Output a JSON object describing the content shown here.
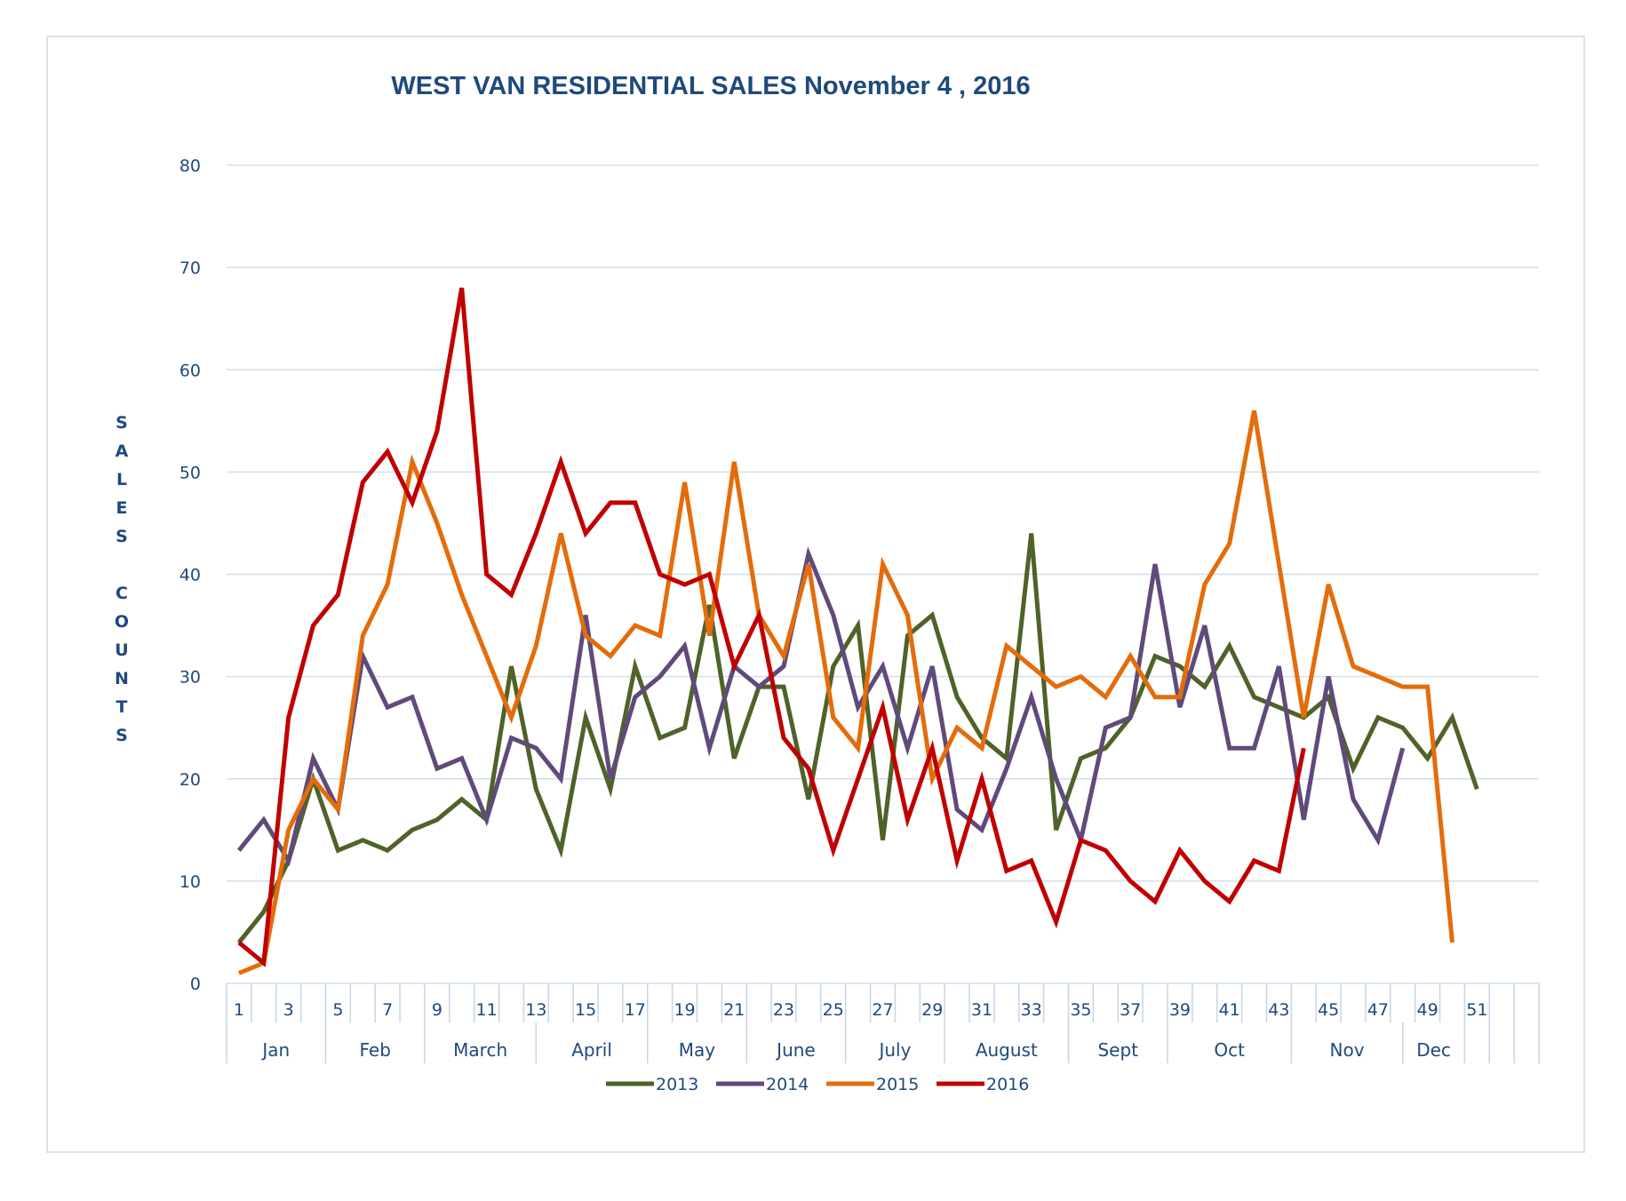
{
  "chart_data": {
    "type": "line",
    "title": "WEST VAN RESIDENTIAL SALES November 4 , 2016",
    "ylabel": "SALES COUNTS",
    "ylim": [
      0,
      80
    ],
    "yticks": [
      "0",
      "10",
      "20",
      "30",
      "40",
      "50",
      "60",
      "70",
      "80"
    ],
    "xlim": [
      1,
      53
    ],
    "xticks": [
      "1",
      "3",
      "5",
      "7",
      "9",
      "11",
      "13",
      "15",
      "17",
      "19",
      "21",
      "23",
      "25",
      "27",
      "29",
      "31",
      "33",
      "35",
      "37",
      "39",
      "41",
      "43",
      "45",
      "47",
      "49",
      "51"
    ],
    "months": [
      {
        "label": "Jan",
        "start": 1,
        "end": 5
      },
      {
        "label": "Feb",
        "start": 5,
        "end": 9
      },
      {
        "label": "March",
        "start": 9,
        "end": 13.5
      },
      {
        "label": "April",
        "start": 13.5,
        "end": 18
      },
      {
        "label": "May",
        "start": 18,
        "end": 22
      },
      {
        "label": "June",
        "start": 22,
        "end": 26
      },
      {
        "label": "July",
        "start": 26,
        "end": 30
      },
      {
        "label": "August",
        "start": 30,
        "end": 35
      },
      {
        "label": "Sept",
        "start": 35,
        "end": 39
      },
      {
        "label": "Oct",
        "start": 39,
        "end": 44
      },
      {
        "label": "Nov",
        "start": 44,
        "end": 48.5
      },
      {
        "label": "Dec",
        "start": 48.5,
        "end": 51
      }
    ],
    "grid": true,
    "legend_position": "bottom",
    "series": [
      {
        "name": "2013",
        "color": "#4f6228",
        "values": [
          4,
          7,
          12,
          20,
          13,
          14,
          13,
          15,
          16,
          18,
          16,
          31,
          19,
          13,
          26,
          19,
          31,
          24,
          25,
          37,
          22,
          29,
          29,
          18,
          31,
          35,
          14,
          34,
          36,
          28,
          24,
          22,
          44,
          15,
          22,
          23,
          26,
          32,
          31,
          29,
          33,
          28,
          27,
          26,
          28,
          21,
          26,
          25,
          22,
          26,
          19
        ]
      },
      {
        "name": "2014",
        "color": "#604a7b",
        "values": [
          13,
          16,
          12,
          22,
          17,
          32,
          27,
          28,
          21,
          22,
          16,
          24,
          23,
          20,
          36,
          20,
          28,
          30,
          33,
          23,
          31,
          29,
          31,
          42,
          36,
          27,
          31,
          23,
          31,
          17,
          15,
          21,
          28,
          20,
          14,
          25,
          26,
          41,
          27,
          35,
          23,
          23,
          31,
          16,
          30,
          18,
          14,
          23
        ]
      },
      {
        "name": "2015",
        "color": "#e46c0a",
        "values": [
          1,
          2,
          15,
          20,
          17,
          34,
          39,
          51,
          45,
          38,
          32,
          26,
          33,
          44,
          34,
          32,
          35,
          34,
          49,
          34,
          51,
          36,
          32,
          41,
          26,
          23,
          41,
          36,
          20,
          25,
          23,
          33,
          31,
          29,
          30,
          28,
          32,
          28,
          28,
          39,
          43,
          56,
          41,
          26,
          39,
          31,
          30,
          29,
          29,
          4
        ]
      },
      {
        "name": "2016",
        "color": "#c00000",
        "values": [
          4,
          2,
          26,
          35,
          38,
          49,
          52,
          47,
          54,
          68,
          40,
          38,
          44,
          51,
          44,
          47,
          47,
          40,
          39,
          40,
          31,
          36,
          24,
          21,
          13,
          20,
          27,
          16,
          23,
          12,
          20,
          11,
          12,
          6,
          14,
          13,
          10,
          8,
          13,
          10,
          8,
          12,
          11,
          23
        ]
      }
    ]
  }
}
